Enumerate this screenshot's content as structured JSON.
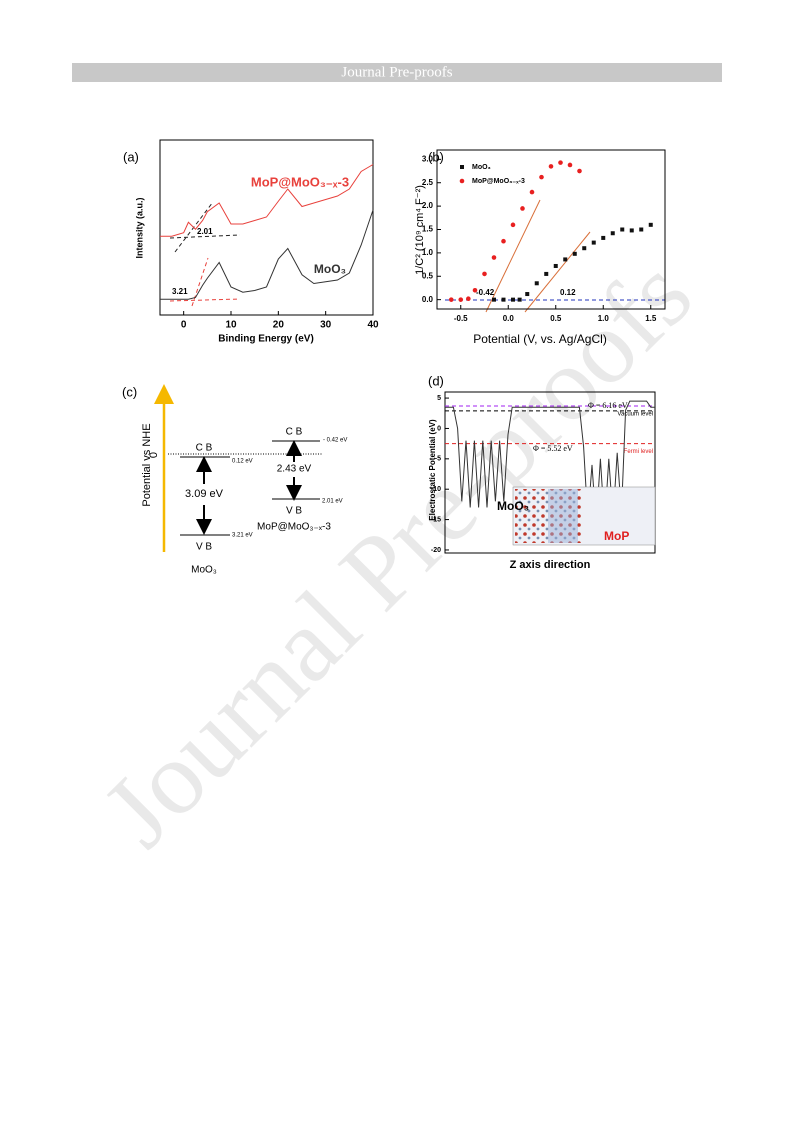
{
  "header": "Journal Pre-proofs",
  "watermark": "Journal Pre-proofs",
  "chart_data": [
    {
      "type": "line",
      "panel_label": "(a)",
      "xlabel": "Binding Energy (eV)",
      "ylabel": "Intensity (a.u.)",
      "xlim": [
        -5,
        40
      ],
      "xticks": [
        0,
        10,
        20,
        30,
        40
      ],
      "ylim": [
        0,
        10
      ],
      "x": [
        -5,
        -2.5,
        0,
        1,
        2.5,
        4,
        5,
        7.5,
        10,
        12.5,
        15,
        17.5,
        20,
        22,
        25,
        27.5,
        30,
        32.5,
        35,
        37.5,
        40
      ],
      "series": [
        {
          "name": "MoP@MoO₃₋ₓ-3",
          "color": "#e8413c",
          "values": [
            4.5,
            4.5,
            4.7,
            5.3,
            4.9,
            5.4,
            5.9,
            6.4,
            5.2,
            5.2,
            5.4,
            5.6,
            6.5,
            7.2,
            6.2,
            6.4,
            6.6,
            6.8,
            7.2,
            8.2,
            8.6
          ]
        },
        {
          "name": "MoO₃",
          "color": "#333333",
          "values": [
            0.9,
            0.9,
            0.9,
            0.9,
            1.0,
            1.7,
            2.1,
            3.0,
            1.6,
            1.3,
            1.4,
            1.6,
            3.2,
            3.8,
            2.3,
            1.8,
            1.9,
            2.0,
            2.4,
            4.0,
            6.0
          ]
        }
      ],
      "annotations": [
        {
          "text": "2.01"
        },
        {
          "text": "3.21"
        }
      ]
    },
    {
      "type": "scatter",
      "panel_label": "(b)",
      "xlabel": "Potential (V, vs. Ag/AgCl)",
      "ylabel": "1/C² (10⁹ cm⁴ F⁻²)",
      "xlim": [
        -0.75,
        1.65
      ],
      "xticks": [
        -0.5,
        {
          "value": 0,
          "label": "0.0"
        },
        0.5,
        {
          "value": 1,
          "label": "1.0"
        },
        1.5
      ],
      "ylim": [
        -0.2,
        3.2
      ],
      "yticks": [
        {
          "value": 0,
          "label": "0.0"
        },
        0.5,
        {
          "value": 1,
          "label": "1.0"
        },
        1.5,
        {
          "value": 2,
          "label": "2.0"
        },
        2.5,
        {
          "value": 3,
          "label": "3.0"
        }
      ],
      "legend": "upper left",
      "series": [
        {
          "name": "MoO₃",
          "color": "#111111",
          "marker": "square",
          "x": [
            -0.15,
            -0.05,
            0.05,
            0.12,
            0.2,
            0.3,
            0.4,
            0.5,
            0.6,
            0.7,
            0.8,
            0.9,
            1.0,
            1.1,
            1.2,
            1.3,
            1.4,
            1.5
          ],
          "values": [
            0,
            0,
            0,
            0,
            0.12,
            0.35,
            0.55,
            0.72,
            0.86,
            0.98,
            1.1,
            1.22,
            1.32,
            1.42,
            1.5,
            1.48,
            1.5,
            1.6
          ]
        },
        {
          "name": "MoP@MoO₃₋ₓ-3",
          "color": "#e82020",
          "marker": "circle",
          "x": [
            -0.6,
            -0.5,
            -0.42,
            -0.35,
            -0.25,
            -0.15,
            -0.05,
            0.05,
            0.15,
            0.25,
            0.35,
            0.45,
            0.55,
            0.65,
            0.75
          ],
          "values": [
            0,
            0,
            0.02,
            0.2,
            0.55,
            0.9,
            1.25,
            1.6,
            1.95,
            2.3,
            2.62,
            2.85,
            2.93,
            2.88,
            2.75
          ]
        }
      ],
      "annotations": [
        {
          "text": "-0.42"
        },
        {
          "text": "0.12"
        }
      ]
    },
    {
      "type": "line",
      "panel_label": "(d)",
      "xlabel": "Z axis direction",
      "ylabel": "Electrostatic Potential (eV)",
      "xlim": [
        0,
        100
      ],
      "ylim": [
        -20.5,
        6
      ],
      "yticks": [
        5,
        0,
        -5,
        -10,
        -15,
        -20
      ],
      "x": [
        0,
        2,
        4,
        6,
        8,
        10,
        12,
        14,
        16,
        18,
        20,
        22,
        24,
        26,
        28,
        30,
        32,
        34,
        36,
        38,
        40,
        42,
        44,
        46,
        48,
        50,
        52,
        54,
        56,
        58,
        60,
        62,
        64,
        66,
        68,
        70,
        72,
        74,
        76,
        78,
        80,
        82,
        84,
        86,
        88,
        90,
        92,
        94,
        96,
        98,
        100
      ],
      "series": [
        {
          "color": "#333333",
          "values": [
            3.5,
            3.5,
            3.5,
            0,
            -12,
            -2,
            -13,
            -2,
            -13,
            -2,
            -13,
            -2,
            -12,
            -2,
            -12,
            -1,
            3.5,
            3.5,
            3.5,
            3.5,
            3.5,
            3.5,
            3.5,
            3.5,
            3.5,
            3.5,
            3.5,
            3.5,
            3.5,
            3.5,
            3.5,
            3.5,
            3.5,
            -3,
            -15,
            -6,
            -16,
            -5,
            -16,
            -5,
            -15,
            -4,
            -14,
            3,
            4.5,
            4.5,
            4.5,
            4.5,
            4.5,
            3.5,
            3.5
          ]
        }
      ],
      "reference_lines": [
        {
          "label": "Vacuum level",
          "value": 3.7,
          "color": "#a020f0"
        },
        {
          "value": 2.9,
          "color": "#000000"
        },
        {
          "label": "Fermi level",
          "value": -2.5,
          "color": "#e02020"
        }
      ],
      "annotations": [
        {
          "text": "Φ = 6.16 eV"
        },
        {
          "text": "Φ = 5.52 eV"
        },
        {
          "text": "MoO₃"
        },
        {
          "text": "MoP",
          "color": "#e02020"
        }
      ]
    }
  ],
  "diagram": {
    "panel_label": "(c)",
    "axis_label": "Potential vs NHE",
    "zero": "0",
    "left": {
      "cb": "C B",
      "cb_value": "0.12 eV",
      "gap": "3.09 eV",
      "vb": "V B",
      "vb_value": "3.21 eV",
      "name": "MoO₃"
    },
    "right": {
      "cb": "C B",
      "cb_value": "- 0.42 eV",
      "gap": "2.43 eV",
      "vb": "V B",
      "vb_value": "2.01 eV",
      "name": "MoP@MoO₃₋ₓ-3"
    }
  }
}
